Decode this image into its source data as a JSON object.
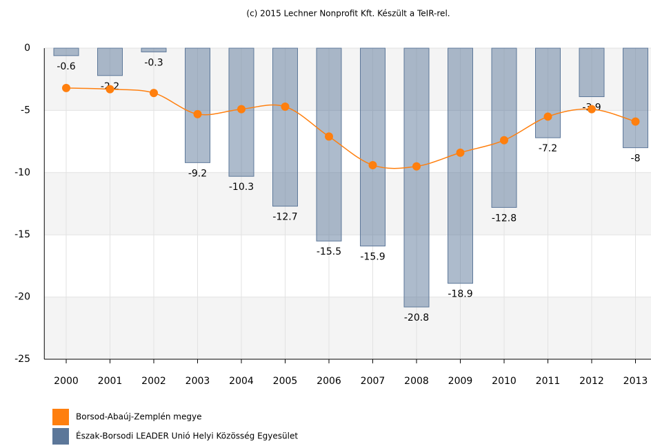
{
  "chart_data": {
    "type": "bar_line",
    "title": "(c) 2015 Lechner Nonprofit Kft. Készült a TeIR-rel.",
    "categories": [
      "2000",
      "2001",
      "2002",
      "2003",
      "2004",
      "2005",
      "2006",
      "2007",
      "2008",
      "2009",
      "2010",
      "2011",
      "2012",
      "2013"
    ],
    "series": [
      {
        "name": "Borsod-Abaúj-Zemplén megye",
        "type": "line",
        "color": "#ff7f0e",
        "values": [
          -3.2,
          -3.3,
          -3.6,
          -5.3,
          -4.9,
          -4.7,
          -7.1,
          -9.4,
          -9.5,
          -8.4,
          -7.4,
          -5.5,
          -4.9,
          -5.9
        ]
      },
      {
        "name": "Észak-Borsodi LEADER Unió Helyi Közösség Egyesület",
        "type": "bar",
        "color": "#5c7799",
        "values": [
          -0.6,
          -2.2,
          -0.3,
          -9.2,
          -10.3,
          -12.7,
          -15.5,
          -15.9,
          -20.8,
          -18.9,
          -12.8,
          -7.2,
          -3.9,
          -8
        ]
      }
    ],
    "ylim": [
      -25,
      0
    ],
    "yticks": [
      0,
      -5,
      -10,
      -15,
      -20,
      -25
    ],
    "grid": true
  }
}
